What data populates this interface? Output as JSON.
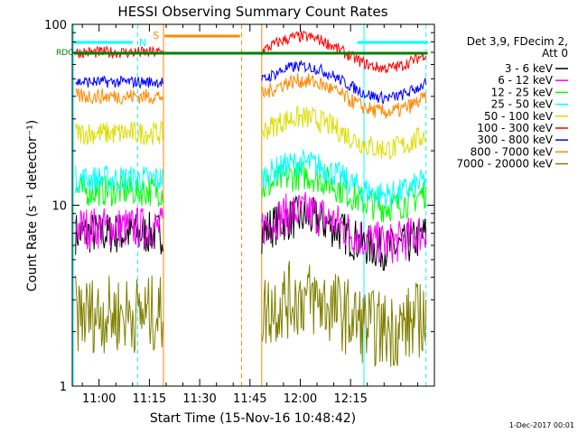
{
  "chart_data": {
    "type": "line",
    "title": "HESSI Observing Summary Count Rates",
    "xlabel": "Start Time (15-Nov-16 10:48:42)",
    "ylabel": "Count Rate (s⁻¹ detector⁻¹)",
    "x_ticks": [
      "11:00",
      "11:15",
      "11:30",
      "11:45",
      "12:00",
      "12:15"
    ],
    "x_range_minutes": [
      52,
      160
    ],
    "y_scale": "log",
    "y_range": [
      1,
      100
    ],
    "y_tick_labels": [
      "1",
      "10",
      "100"
    ],
    "legend_header": [
      "Det 3,9, FDecim 2,",
      "Att 0"
    ],
    "legend_position": "right",
    "series": [
      {
        "name": "3 - 6 keV",
        "color": "#000000",
        "level": 7
      },
      {
        "name": "6 - 12 keV",
        "color": "#ff00ff",
        "level": 7.5
      },
      {
        "name": "12 - 25 keV",
        "color": "#00ff00",
        "level": 12
      },
      {
        "name": "25 - 50 keV",
        "color": "#00ffff",
        "level": 14
      },
      {
        "name": "50 - 100 keV",
        "color": "#dddd00",
        "level": 25
      },
      {
        "name": "100 - 300 keV",
        "color": "#ff0000",
        "level": 70
      },
      {
        "name": "300 - 800 keV",
        "color": "#0000ff",
        "level": 48
      },
      {
        "name": "800 - 7000 keV",
        "color": "#ff8800",
        "level": 40
      },
      {
        "name": "7000 - 20000 keV",
        "color": "#808000",
        "level": 2.5
      }
    ],
    "flags": [
      {
        "label": "S",
        "color": "#ff8800"
      },
      {
        "label": "N",
        "color": "#00ffff"
      },
      {
        "label": "RDC",
        "color": "#008000"
      }
    ],
    "vertical_markers_minutes": [
      {
        "t": 52.3,
        "color": "#00ffff",
        "style": "solid"
      },
      {
        "t": 71.5,
        "color": "#00ffff",
        "style": "dashed"
      },
      {
        "t": 79.2,
        "color": "#ff8800",
        "style": "solid"
      },
      {
        "t": 102.5,
        "color": "#ff8800",
        "style": "dashed"
      },
      {
        "t": 108.5,
        "color": "#ff8800",
        "style": "solid"
      },
      {
        "t": 139,
        "color": "#00ffff",
        "style": "solid"
      },
      {
        "t": 157.5,
        "color": "#00ffff",
        "style": "dashed"
      }
    ]
  },
  "footer_timestamp": "1-Dec-2017 00:01"
}
